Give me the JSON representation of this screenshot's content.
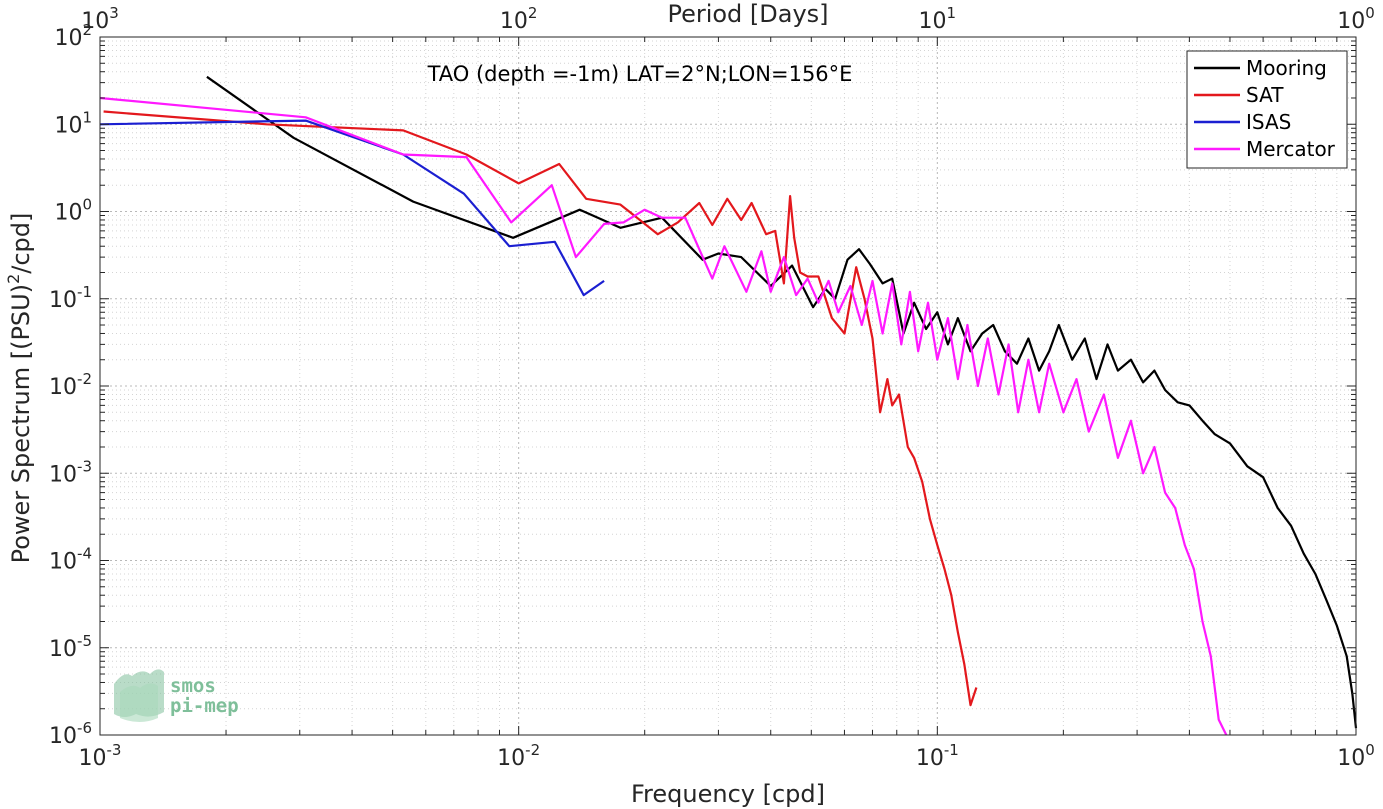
{
  "chart_data": {
    "type": "line",
    "title": "TAO (depth =-1m) LAT=2°N;LON=156°E",
    "xlabel": "Frequency [cpd]",
    "ylabel": "Power Spectrum [(PSU)^2/cpd]",
    "top_xlabel": "Period [Days]",
    "x_scale": "log",
    "y_scale": "log",
    "xlim": [
      0.001,
      1
    ],
    "ylim": [
      1e-06,
      100
    ],
    "grid": true,
    "legend_position": "top-right",
    "x_ticks": [
      {
        "base": "10",
        "exp": "-3",
        "value": 0.001
      },
      {
        "base": "10",
        "exp": "-2",
        "value": 0.01
      },
      {
        "base": "10",
        "exp": "-1",
        "value": 0.1
      },
      {
        "base": "10",
        "exp": "0",
        "value": 1
      }
    ],
    "y_ticks": [
      {
        "base": "10",
        "exp": "2",
        "value": 100
      },
      {
        "base": "10",
        "exp": "1",
        "value": 10
      },
      {
        "base": "10",
        "exp": "0",
        "value": 1
      },
      {
        "base": "10",
        "exp": "-1",
        "value": 0.1
      },
      {
        "base": "10",
        "exp": "-2",
        "value": 0.01
      },
      {
        "base": "10",
        "exp": "-3",
        "value": 0.001
      },
      {
        "base": "10",
        "exp": "-4",
        "value": 0.0001
      },
      {
        "base": "10",
        "exp": "-5",
        "value": 1e-05
      },
      {
        "base": "10",
        "exp": "-6",
        "value": 1e-06
      }
    ],
    "top_ticks": [
      {
        "base": "10",
        "exp": "3",
        "freq": 0.001
      },
      {
        "base": "10",
        "exp": "2",
        "freq": 0.01
      },
      {
        "base": "10",
        "exp": "1",
        "freq": 0.1
      },
      {
        "base": "10",
        "exp": "0",
        "freq": 1
      }
    ],
    "series": [
      {
        "name": "Mooring",
        "color": "#000000",
        "x": [
          0.0018,
          0.0029,
          0.0056,
          0.0097,
          0.014,
          0.0175,
          0.022,
          0.0275,
          0.03,
          0.034,
          0.04,
          0.045,
          0.0505,
          0.054,
          0.057,
          0.061,
          0.065,
          0.069,
          0.074,
          0.078,
          0.083,
          0.088,
          0.094,
          0.1,
          0.106,
          0.112,
          0.12,
          0.128,
          0.136,
          0.145,
          0.155,
          0.165,
          0.175,
          0.185,
          0.195,
          0.21,
          0.225,
          0.24,
          0.255,
          0.27,
          0.29,
          0.31,
          0.33,
          0.35,
          0.375,
          0.4,
          0.43,
          0.46,
          0.5,
          0.55,
          0.6,
          0.65,
          0.7,
          0.75,
          0.8,
          0.85,
          0.9,
          0.95,
          0.98,
          1.0
        ],
        "y": [
          35,
          7,
          1.3,
          0.5,
          1.05,
          0.65,
          0.85,
          0.28,
          0.33,
          0.3,
          0.14,
          0.24,
          0.08,
          0.13,
          0.1,
          0.28,
          0.37,
          0.25,
          0.15,
          0.17,
          0.04,
          0.09,
          0.045,
          0.07,
          0.03,
          0.06,
          0.025,
          0.04,
          0.05,
          0.025,
          0.018,
          0.035,
          0.015,
          0.025,
          0.05,
          0.02,
          0.035,
          0.012,
          0.03,
          0.015,
          0.02,
          0.011,
          0.015,
          0.009,
          0.0065,
          0.006,
          0.004,
          0.0028,
          0.0022,
          0.0012,
          0.0009,
          0.0004,
          0.00025,
          0.00012,
          7e-05,
          3.5e-05,
          1.8e-05,
          8e-06,
          3e-06,
          1.2e-06
        ]
      },
      {
        "name": "SAT",
        "color": "#e3181d",
        "x": [
          0.00102,
          0.0025,
          0.0053,
          0.0075,
          0.01,
          0.0125,
          0.0145,
          0.0175,
          0.0215,
          0.024,
          0.027,
          0.029,
          0.0315,
          0.034,
          0.036,
          0.039,
          0.041,
          0.043,
          0.0445,
          0.0455,
          0.047,
          0.049,
          0.052,
          0.056,
          0.06,
          0.064,
          0.067,
          0.07,
          0.073,
          0.076,
          0.078,
          0.081,
          0.085,
          0.088,
          0.092,
          0.096,
          0.1,
          0.104,
          0.108,
          0.112,
          0.116,
          0.12,
          0.124
        ],
        "y": [
          14,
          10,
          8.5,
          4.5,
          2.1,
          3.5,
          1.4,
          1.2,
          0.55,
          0.75,
          1.25,
          0.7,
          1.4,
          0.8,
          1.25,
          0.55,
          0.6,
          0.15,
          1.5,
          0.5,
          0.2,
          0.18,
          0.18,
          0.06,
          0.04,
          0.23,
          0.1,
          0.035,
          0.005,
          0.012,
          0.006,
          0.008,
          0.002,
          0.0015,
          0.0008,
          0.0003,
          0.00015,
          8e-05,
          4e-05,
          1.5e-05,
          6.5e-06,
          2.2e-06,
          3.5e-06
        ]
      },
      {
        "name": "ISAS",
        "color": "#1b1fd1",
        "x": [
          0.001,
          0.0031,
          0.0053,
          0.0074,
          0.0095,
          0.0122,
          0.0143,
          0.016
        ],
        "y": [
          10,
          11,
          4.5,
          1.6,
          0.4,
          0.45,
          0.11,
          0.16
        ]
      },
      {
        "name": "Mercator",
        "color": "#ff19ff",
        "x": [
          0.001,
          0.0031,
          0.0053,
          0.0075,
          0.0096,
          0.012,
          0.0137,
          0.016,
          0.0178,
          0.02,
          0.022,
          0.025,
          0.029,
          0.031,
          0.035,
          0.038,
          0.04,
          0.043,
          0.046,
          0.049,
          0.052,
          0.055,
          0.058,
          0.062,
          0.066,
          0.07,
          0.074,
          0.078,
          0.082,
          0.086,
          0.09,
          0.095,
          0.1,
          0.106,
          0.112,
          0.118,
          0.125,
          0.132,
          0.14,
          0.148,
          0.156,
          0.165,
          0.175,
          0.185,
          0.2,
          0.215,
          0.23,
          0.25,
          0.27,
          0.29,
          0.31,
          0.33,
          0.35,
          0.37,
          0.39,
          0.41,
          0.43,
          0.45,
          0.47,
          0.49
        ],
        "y": [
          20,
          12,
          4.5,
          4.2,
          0.75,
          2.0,
          0.3,
          0.72,
          0.75,
          1.05,
          0.85,
          0.85,
          0.17,
          0.4,
          0.12,
          0.35,
          0.12,
          0.3,
          0.11,
          0.17,
          0.09,
          0.16,
          0.07,
          0.14,
          0.05,
          0.16,
          0.04,
          0.15,
          0.03,
          0.12,
          0.025,
          0.09,
          0.02,
          0.06,
          0.012,
          0.05,
          0.01,
          0.035,
          0.008,
          0.03,
          0.005,
          0.02,
          0.005,
          0.018,
          0.005,
          0.012,
          0.003,
          0.008,
          0.0015,
          0.004,
          0.001,
          0.002,
          0.0006,
          0.0004,
          0.00015,
          8e-05,
          2e-05,
          8e-06,
          1.5e-06,
          1e-06
        ]
      }
    ]
  },
  "legend": {
    "items": [
      "Mooring",
      "SAT",
      "ISAS",
      "Mercator"
    ]
  },
  "logo": {
    "line1": "smos",
    "line2": "pi-mep"
  }
}
